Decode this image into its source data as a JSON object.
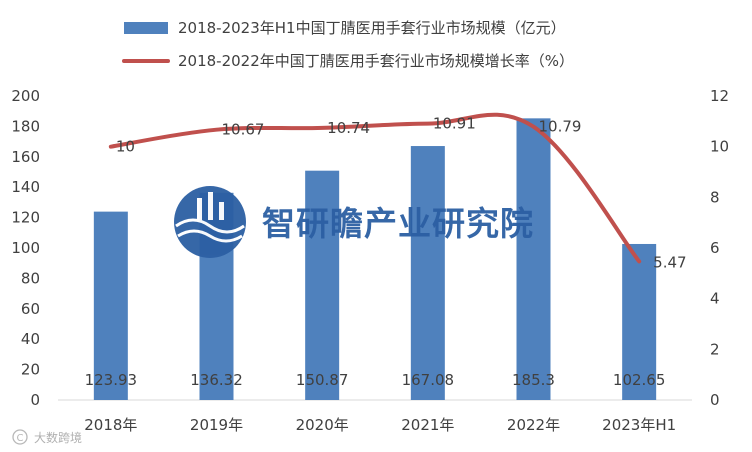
{
  "chart_data": {
    "type": "bar+line",
    "categories": [
      "2018年",
      "2019年",
      "2020年",
      "2021年",
      "2022年",
      "2023年H1"
    ],
    "series": [
      {
        "name": "2018-2023年H1中国丁腈医用手套行业市场规模（亿元）",
        "kind": "bar",
        "axis": "left",
        "color": "#4f81bd",
        "values": [
          123.93,
          136.32,
          150.87,
          167.08,
          185.3,
          102.65
        ],
        "labels": [
          "123.93",
          "136.32",
          "150.87",
          "167.08",
          "185.3",
          "102.65"
        ]
      },
      {
        "name": "2018-2022年中国丁腈医用手套行业市场规模增长率（%）",
        "kind": "line",
        "axis": "right",
        "color": "#c0504d",
        "values": [
          10,
          10.67,
          10.74,
          10.91,
          10.79,
          5.47
        ],
        "labels": [
          "10",
          "10.67",
          "10.74",
          "10.91",
          "10.79",
          "5.47"
        ]
      }
    ],
    "y_left": {
      "min": 0,
      "max": 200,
      "step": 20
    },
    "y_right": {
      "min": 0,
      "max": 12,
      "step": 2
    },
    "legend_position": "top-center",
    "grid": false
  },
  "watermark": {
    "text": "智研瞻产业研究院",
    "logo": "zhiyanzhan-logo-icon"
  },
  "credit": {
    "text": "大数跨境",
    "icon": "copyright-icon"
  }
}
